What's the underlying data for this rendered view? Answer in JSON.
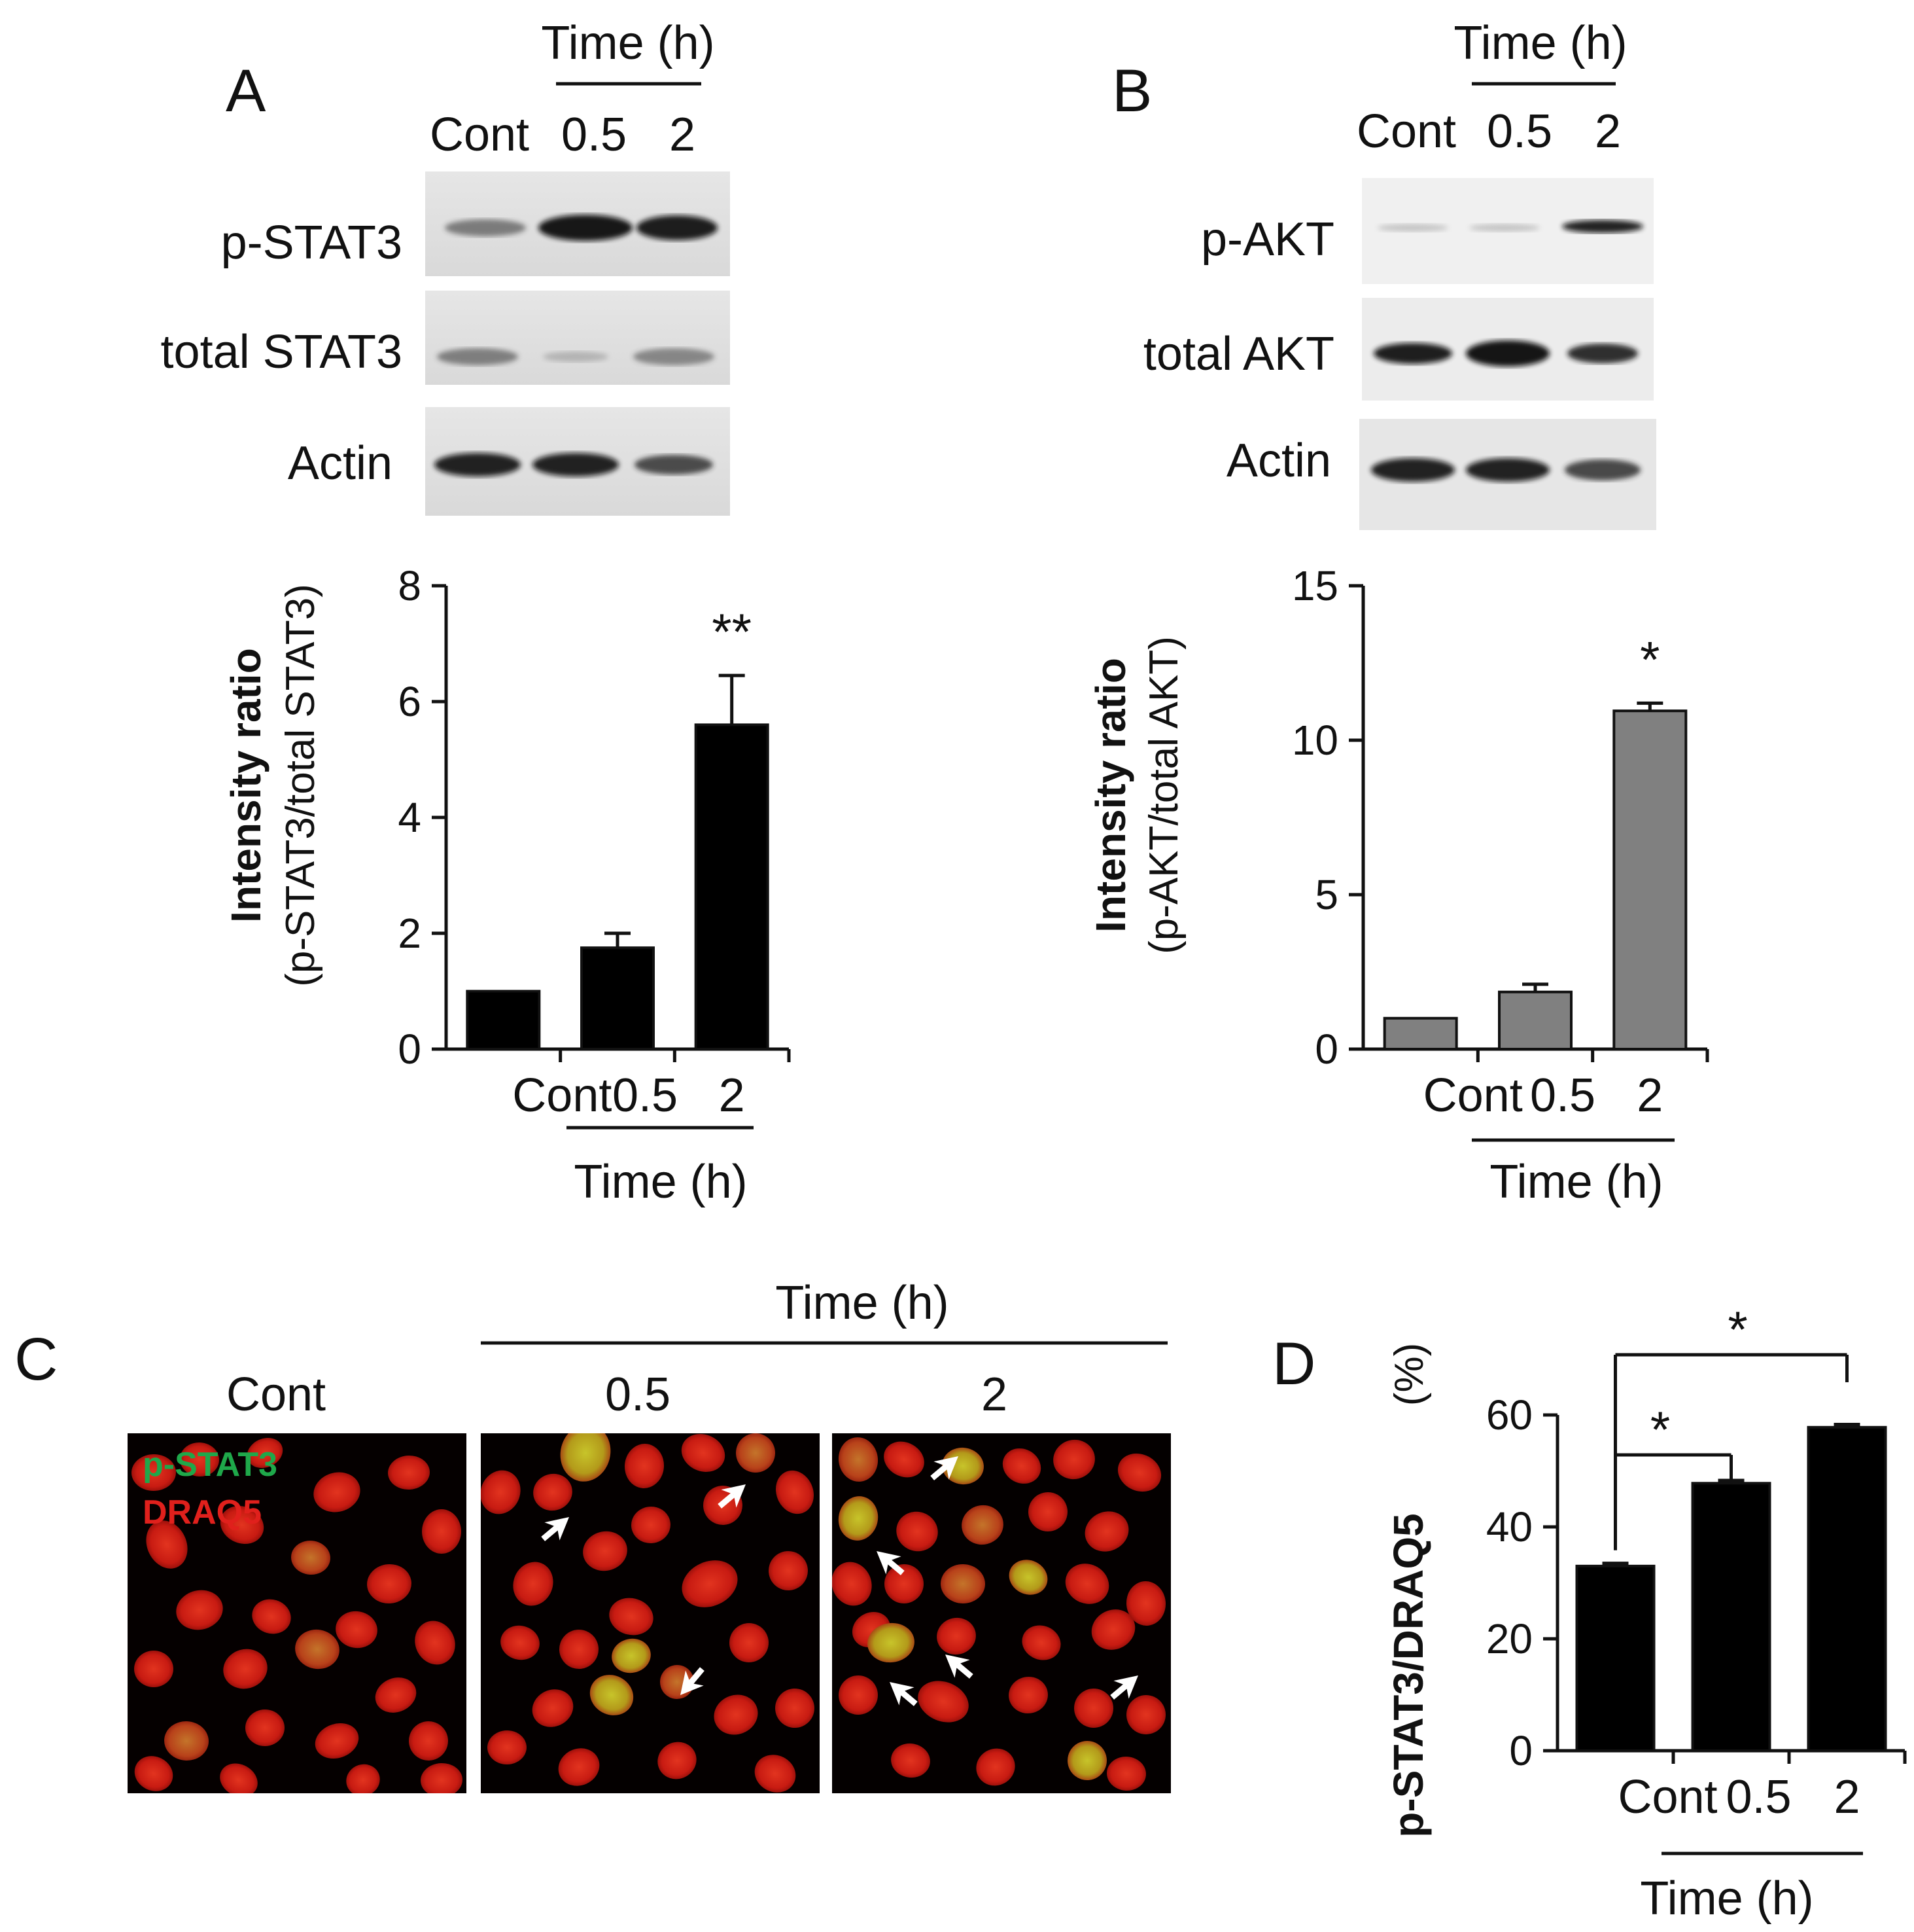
{
  "panel_a": {
    "letter": "A",
    "time_header": "Time (h)",
    "lanes": [
      "Cont",
      "0.5",
      "2"
    ],
    "blot_labels": [
      "p-STAT3",
      "total STAT3",
      "Actin"
    ]
  },
  "panel_b": {
    "letter": "B",
    "time_header": "Time (h)",
    "lanes": [
      "Cont",
      "0.5",
      "2"
    ],
    "blot_labels": [
      "p-AKT",
      "total AKT",
      "Actin"
    ]
  },
  "panel_c": {
    "letter": "C",
    "time_header": "Time (h)",
    "conditions": [
      "Cont",
      "0.5",
      "2"
    ],
    "legend_green": "p-STAT3",
    "legend_red": "DRAQ5",
    "legend_green_color": "#1fa84a",
    "legend_red_color": "#e0201c"
  },
  "panel_d": {
    "letter": "D"
  },
  "chart_data": [
    {
      "panel": "A",
      "type": "bar",
      "categories": [
        "Cont",
        "0.5",
        "2"
      ],
      "values": [
        1.0,
        1.75,
        5.6
      ],
      "errors": [
        0,
        0.25,
        0.85
      ],
      "annotations": [
        "",
        "",
        "**"
      ],
      "ylabel_bold": "Intensity ratio",
      "ylabel": "(p-STAT3/total STAT3)",
      "xgroup_label": "Time (h)",
      "ylim": [
        0,
        8
      ],
      "yticks": [
        0,
        2,
        4,
        6,
        8
      ],
      "bar_color": "#000000"
    },
    {
      "panel": "B",
      "type": "bar",
      "categories": [
        "Cont",
        "0.5",
        "2"
      ],
      "values": [
        1.0,
        1.85,
        10.95
      ],
      "errors": [
        0,
        0.25,
        0.25
      ],
      "annotations": [
        "",
        "",
        "*"
      ],
      "ylabel_bold": "Intensity ratio",
      "ylabel": "(p-AKT/total AKT)",
      "xgroup_label": "Time (h)",
      "ylim": [
        0,
        15
      ],
      "yticks": [
        0,
        5,
        10,
        15
      ],
      "bar_color": "#808080"
    },
    {
      "panel": "D",
      "type": "bar",
      "categories": [
        "Cont",
        "0.5",
        "2"
      ],
      "values": [
        33,
        47.8,
        57.8
      ],
      "errors": [
        0.5,
        0.5,
        0.5
      ],
      "significance": [
        {
          "from": "Cont",
          "to": "0.5",
          "label": "*"
        },
        {
          "from": "Cont",
          "to": "2",
          "label": "*"
        }
      ],
      "ylabel_bold": "p-STAT3/DRAQ5",
      "ylabel": "(%)",
      "xgroup_label": "Time (h)",
      "ylim": [
        0,
        60
      ],
      "yticks": [
        0,
        20,
        40,
        60
      ],
      "bar_color": "#000000"
    }
  ]
}
